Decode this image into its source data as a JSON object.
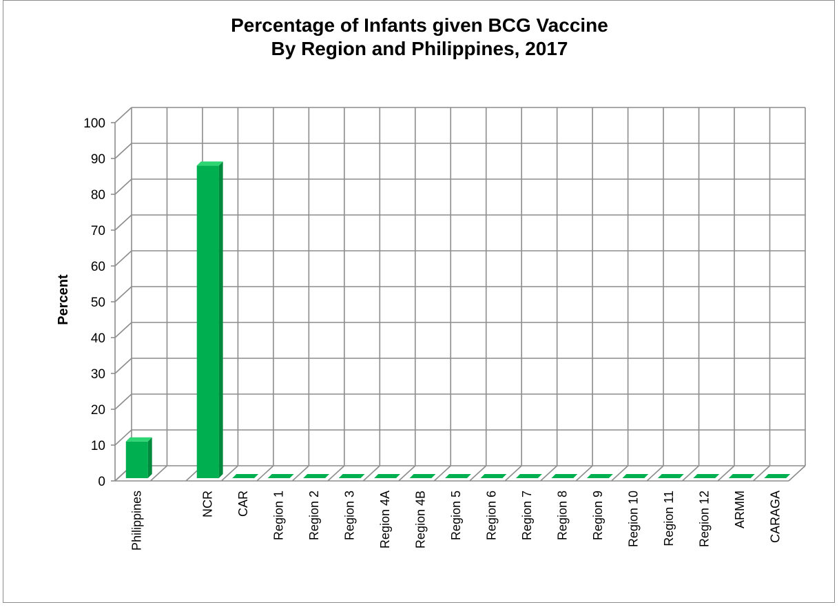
{
  "chart_data": {
    "type": "bar",
    "title": [
      "Percentage of Infants given BCG Vaccine",
      "By Region and Philippines, 2017"
    ],
    "xlabel": "",
    "ylabel": "Percent",
    "ylim": [
      0,
      100
    ],
    "yticks": [
      0,
      10,
      20,
      30,
      40,
      50,
      60,
      70,
      80,
      90,
      100
    ],
    "grid": true,
    "categories": [
      "Philippines",
      "",
      "NCR",
      "CAR",
      "Region 1",
      "Region 2",
      "Region 3",
      "Region 4A",
      "Region 4B",
      "Region 5",
      "Region 6",
      "Region 7",
      "Region 8",
      "Region 9",
      "Region 10",
      "Region 11",
      "Region 12",
      "ARMM",
      "CARAGA"
    ],
    "values": [
      11,
      0,
      88,
      0,
      0,
      0,
      0,
      0,
      0,
      0,
      0,
      0,
      0,
      0,
      0,
      0,
      0,
      0,
      0
    ],
    "colors": {
      "bar_front": "#00b050",
      "bar_side": "#008a3e",
      "bar_top": "#2ed673",
      "grid": "#8c8c8c"
    }
  }
}
